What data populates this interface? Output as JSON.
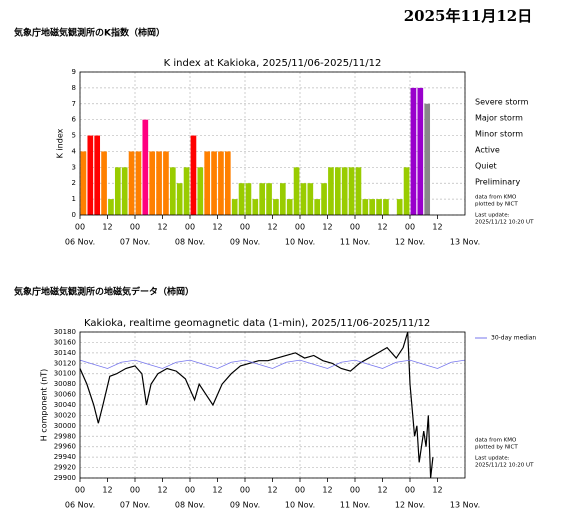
{
  "date": "2025年11月12日",
  "chart_data": [
    {
      "type": "bar",
      "heading": "気象庁地磁気観測所のK指数（柿岡）",
      "title": "K index at Kakioka, 2025/11/06-2025/11/12",
      "ylabel": "K index",
      "x": [
        0,
        3,
        6,
        9,
        12,
        15,
        18,
        21,
        24,
        27,
        30,
        33,
        36,
        39,
        42,
        45,
        48,
        51,
        54,
        57,
        60,
        63,
        66,
        69,
        72,
        75,
        78,
        81,
        84,
        87,
        90,
        93,
        96,
        99,
        102,
        105,
        108,
        111,
        114,
        117,
        120,
        123,
        126,
        129,
        132,
        135,
        138,
        141,
        144,
        147,
        150
      ],
      "values": [
        4,
        5,
        5,
        4,
        1,
        3,
        3,
        4,
        4,
        6,
        4,
        4,
        4,
        3,
        2,
        3,
        5,
        3,
        4,
        4,
        4,
        4,
        1,
        2,
        2,
        1,
        2,
        2,
        1,
        2,
        1,
        3,
        2,
        2,
        1,
        2,
        3,
        3,
        3,
        3,
        3,
        1,
        1,
        1,
        1,
        0,
        1,
        3,
        8,
        8,
        7
      ],
      "colors": [
        "#ff8000",
        "#ff0000",
        "#ff0000",
        "#ff8000",
        "#99cc00",
        "#99cc00",
        "#99cc00",
        "#ff8000",
        "#ff8000",
        "#ff0080",
        "#ff8000",
        "#ff8000",
        "#ff8000",
        "#99cc00",
        "#99cc00",
        "#99cc00",
        "#ff0000",
        "#99cc00",
        "#ff8000",
        "#ff8000",
        "#ff8000",
        "#ff8000",
        "#99cc00",
        "#99cc00",
        "#99cc00",
        "#99cc00",
        "#99cc00",
        "#99cc00",
        "#99cc00",
        "#99cc00",
        "#99cc00",
        "#99cc00",
        "#99cc00",
        "#99cc00",
        "#99cc00",
        "#99cc00",
        "#99cc00",
        "#99cc00",
        "#99cc00",
        "#99cc00",
        "#99cc00",
        "#99cc00",
        "#99cc00",
        "#99cc00",
        "#99cc00",
        "#99cc00",
        "#99cc00",
        "#99cc00",
        "#9900cc",
        "#9900cc",
        "#888888"
      ],
      "legend": [
        {
          "name": "Severe storm",
          "color": "#9900cc"
        },
        {
          "name": "Major storm",
          "color": "#ff0080"
        },
        {
          "name": "Minor storm",
          "color": "#ff0000"
        },
        {
          "name": "Active",
          "color": "#ff8000"
        },
        {
          "name": "Quiet",
          "color": "#99cc00"
        },
        {
          "name": "Preliminary",
          "color": "#888888"
        }
      ],
      "notes": [
        "data from KMO",
        "plotted by NICT",
        "Last update:",
        "2025/11/12 10:20 UT"
      ],
      "xlim": [
        0,
        168
      ],
      "ylim": [
        0,
        9
      ],
      "yticks": [
        0,
        1,
        2,
        3,
        4,
        5,
        6,
        7,
        8,
        9
      ],
      "xticks": [
        {
          "value": 0,
          "label": "00"
        },
        {
          "value": 12,
          "label": "12"
        },
        {
          "value": 24,
          "label": "00"
        },
        {
          "value": 36,
          "label": "12"
        },
        {
          "value": 48,
          "label": "00"
        },
        {
          "value": 60,
          "label": "12"
        },
        {
          "value": 72,
          "label": "00"
        },
        {
          "value": 84,
          "label": "12"
        },
        {
          "value": 96,
          "label": "00"
        },
        {
          "value": 108,
          "label": "12"
        },
        {
          "value": 120,
          "label": "00"
        },
        {
          "value": 132,
          "label": "12"
        },
        {
          "value": 144,
          "label": "00"
        },
        {
          "value": 156,
          "label": "12"
        }
      ],
      "day_labels": [
        {
          "value": 0,
          "label": "06 Nov."
        },
        {
          "value": 24,
          "label": "07 Nov."
        },
        {
          "value": 48,
          "label": "08 Nov."
        },
        {
          "value": 72,
          "label": "09 Nov."
        },
        {
          "value": 96,
          "label": "10 Nov."
        },
        {
          "value": 120,
          "label": "11 Nov."
        },
        {
          "value": 144,
          "label": "12 Nov."
        },
        {
          "value": 168,
          "label": "13 Nov."
        }
      ],
      "grid": true
    },
    {
      "type": "line",
      "heading": "気象庁地磁気観測所の地磁気データ（柿岡）",
      "title": "Kakioka, realtime geomagnetic data (1-min), 2025/11/06-2025/11/12",
      "ylabel": "H component (nT)",
      "series": [
        {
          "color": "#000000",
          "x": [
            0,
            3,
            6,
            8,
            10,
            13,
            16,
            20,
            24,
            27,
            29,
            31,
            34,
            38,
            42,
            46,
            48,
            50,
            52,
            55,
            58,
            62,
            66,
            70,
            74,
            78,
            82,
            86,
            90,
            94,
            98,
            102,
            106,
            110,
            114,
            118,
            122,
            126,
            130,
            134,
            138,
            141,
            143,
            144,
            146,
            147,
            148,
            150,
            151,
            152,
            153,
            154
          ],
          "values": [
            30110,
            30080,
            30040,
            30005,
            30040,
            30095,
            30100,
            30110,
            30115,
            30100,
            30040,
            30080,
            30100,
            30110,
            30105,
            30090,
            30070,
            30050,
            30080,
            30060,
            30040,
            30080,
            30100,
            30115,
            30120,
            30125,
            30125,
            30130,
            30135,
            30140,
            30130,
            30135,
            30125,
            30120,
            30110,
            30105,
            30120,
            30130,
            30140,
            30150,
            30130,
            30150,
            30180,
            30080,
            29980,
            30000,
            29930,
            29990,
            29960,
            30020,
            29900,
            29940
          ]
        },
        {
          "name": "30-day median",
          "color": "#7777ee",
          "x": [
            0,
            6,
            12,
            18,
            24,
            30,
            36,
            42,
            48,
            54,
            60,
            66,
            72,
            78,
            84,
            90,
            96,
            102,
            108,
            114,
            120,
            126,
            132,
            138,
            144,
            150,
            156,
            162,
            168
          ],
          "values": [
            30126,
            30118,
            30110,
            30122,
            30126,
            30118,
            30110,
            30122,
            30126,
            30118,
            30110,
            30122,
            30126,
            30118,
            30110,
            30122,
            30126,
            30118,
            30110,
            30122,
            30126,
            30118,
            30110,
            30122,
            30126,
            30118,
            30110,
            30122,
            30126
          ]
        }
      ],
      "notes": [
        "data from KMO",
        "plotted by NICT",
        "Last update:",
        "2025/11/12 10:20 UT"
      ],
      "xlim": [
        0,
        168
      ],
      "ylim": [
        29900,
        30180
      ],
      "yticks": [
        30180,
        30160,
        30140,
        30120,
        30100,
        30080,
        30060,
        30040,
        30020,
        30000,
        29980,
        29960,
        29940,
        29920,
        29900
      ],
      "xticks": [
        {
          "value": 0,
          "label": "00"
        },
        {
          "value": 12,
          "label": "12"
        },
        {
          "value": 24,
          "label": "00"
        },
        {
          "value": 36,
          "label": "12"
        },
        {
          "value": 48,
          "label": "00"
        },
        {
          "value": 60,
          "label": "12"
        },
        {
          "value": 72,
          "label": "00"
        },
        {
          "value": 84,
          "label": "12"
        },
        {
          "value": 96,
          "label": "00"
        },
        {
          "value": 108,
          "label": "12"
        },
        {
          "value": 120,
          "label": "00"
        },
        {
          "value": 132,
          "label": "12"
        },
        {
          "value": 144,
          "label": "00"
        },
        {
          "value": 156,
          "label": "12"
        }
      ],
      "day_labels": [
        {
          "value": 0,
          "label": "06 Nov."
        },
        {
          "value": 24,
          "label": "07 Nov."
        },
        {
          "value": 48,
          "label": "08 Nov."
        },
        {
          "value": 72,
          "label": "09 Nov."
        },
        {
          "value": 96,
          "label": "10 Nov."
        },
        {
          "value": 120,
          "label": "11 Nov."
        },
        {
          "value": 144,
          "label": "12 Nov."
        },
        {
          "value": 168,
          "label": "13 Nov."
        }
      ],
      "grid": true
    }
  ]
}
